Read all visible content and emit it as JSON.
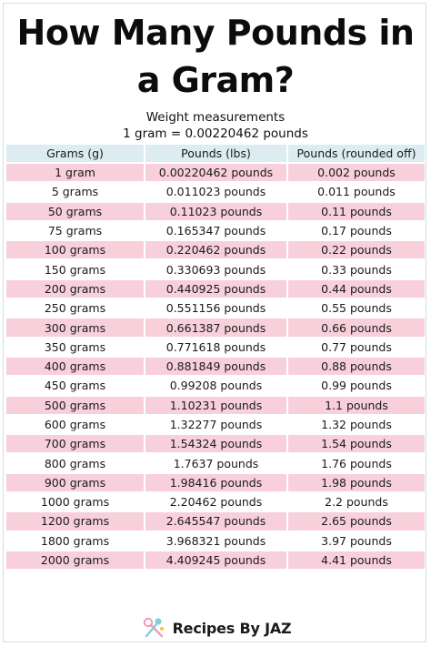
{
  "title": "How Many Pounds in a Gram?",
  "subtitle": "Weight measurements",
  "conversion_note": "1 gram =  0.00220462 pounds",
  "table": {
    "headers": [
      "Grams (g)",
      "Pounds (lbs)",
      "Pounds (rounded off)"
    ],
    "rows": [
      [
        "1 gram",
        "0.00220462 pounds",
        "0.002 pounds"
      ],
      [
        "5 grams",
        "0.011023 pounds",
        "0.011 pounds"
      ],
      [
        "50 grams",
        "0.11023 pounds",
        "0.11 pounds"
      ],
      [
        "75 grams",
        "0.165347 pounds",
        "0.17 pounds"
      ],
      [
        "100 grams",
        "0.220462 pounds",
        "0.22 pounds"
      ],
      [
        "150 grams",
        "0.330693 pounds",
        "0.33 pounds"
      ],
      [
        "200 grams",
        "0.440925 pounds",
        "0.44 pounds"
      ],
      [
        "250 grams",
        "0.551156 pounds",
        "0.55 pounds"
      ],
      [
        "300 grams",
        "0.661387 pounds",
        "0.66 pounds"
      ],
      [
        "350 grams",
        "0.771618 pounds",
        "0.77 pounds"
      ],
      [
        "400 grams",
        "0.881849 pounds",
        "0.88 pounds"
      ],
      [
        "450 grams",
        "0.99208 pounds",
        "0.99 pounds"
      ],
      [
        "500 grams",
        "1.10231 pounds",
        "1.1 pounds"
      ],
      [
        "600 grams",
        "1.32277 pounds",
        "1.32 pounds"
      ],
      [
        "700 grams",
        "1.54324 pounds",
        "1.54 pounds"
      ],
      [
        "800 grams",
        "1.7637 pounds",
        "1.76 pounds"
      ],
      [
        "900 grams",
        "1.98416 pounds",
        "1.98 pounds"
      ],
      [
        "1000 grams",
        "2.20462 pounds",
        "2.2 pounds"
      ],
      [
        "1200 grams",
        "2.645547 pounds",
        "2.65 pounds"
      ],
      [
        "1800 grams",
        "3.968321 pounds",
        "3.97 pounds"
      ],
      [
        "2000 grams",
        "4.409245 pounds",
        "4.41 pounds"
      ]
    ]
  },
  "footer": {
    "brand": "Recipes By JAZ",
    "logo_icon": "kitchen-utensils-icon"
  },
  "colors": {
    "header_bg": "#dcecf1",
    "row_pink": "#f8d0dc",
    "row_white": "#ffffff",
    "frame_border": "#c9e3ea"
  }
}
